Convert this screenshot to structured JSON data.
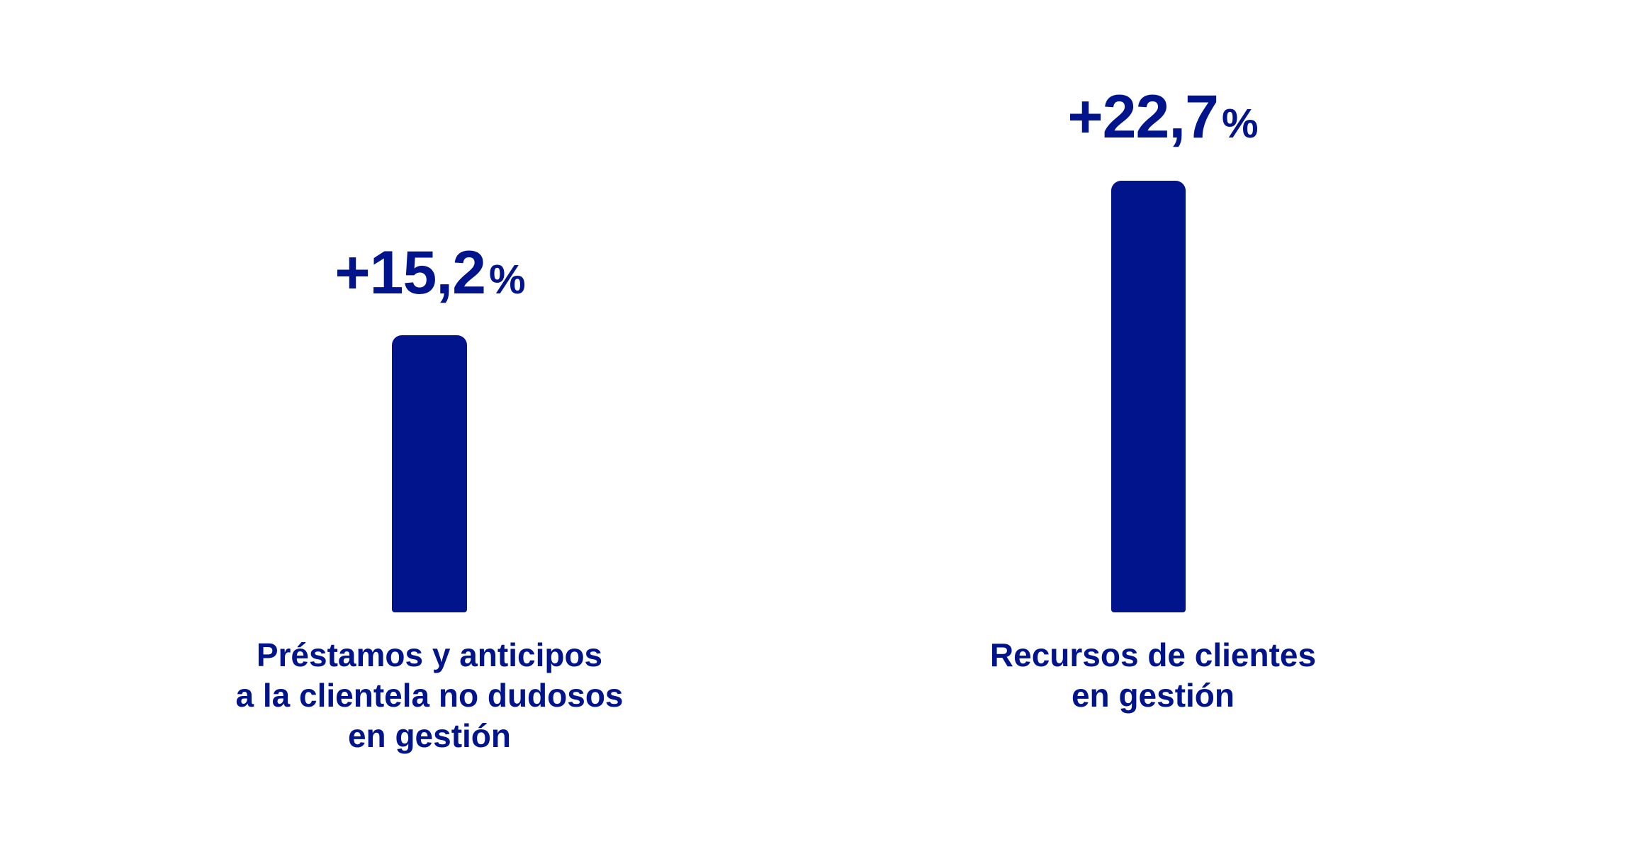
{
  "page": {
    "background_color": "#ffffff",
    "accent_color": "#02148C"
  },
  "chart_data": {
    "type": "bar",
    "categories": [
      "Préstamos y anticipos a la clientela no dudosos en gestión",
      "Recursos de clientes en gestión"
    ],
    "values": [
      15.2,
      22.7
    ],
    "value_labels": [
      "+15,2%",
      "+22,7%"
    ],
    "title": "",
    "xlabel": "",
    "ylabel": "",
    "ylim": [
      0,
      24
    ],
    "grid": false,
    "axes_visible": false,
    "bar_color": "#02148C",
    "legend_position": "none"
  },
  "columns": [
    {
      "value_label": "+15,2",
      "percent_symbol": "%",
      "label_lines": [
        "Préstamos y anticipos",
        "a la clientela no dudosos",
        "en gestión"
      ]
    },
    {
      "value_label": "+22,7",
      "percent_symbol": "%",
      "label_lines": [
        "Recursos de clientes",
        "en gestión"
      ]
    }
  ]
}
